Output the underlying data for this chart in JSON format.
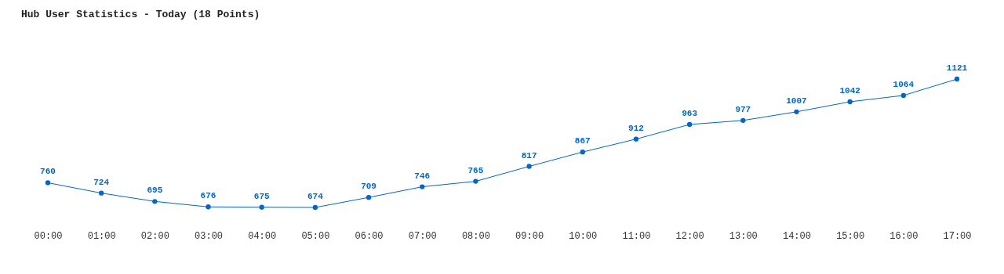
{
  "chart_data": {
    "type": "line",
    "title": "Hub User Statistics - Today (18 Points)",
    "categories": [
      "00:00",
      "01:00",
      "02:00",
      "03:00",
      "04:00",
      "05:00",
      "06:00",
      "07:00",
      "08:00",
      "09:00",
      "10:00",
      "11:00",
      "12:00",
      "13:00",
      "14:00",
      "15:00",
      "16:00",
      "17:00"
    ],
    "values": [
      760,
      724,
      695,
      676,
      675,
      674,
      709,
      746,
      765,
      817,
      867,
      912,
      963,
      977,
      1007,
      1042,
      1064,
      1121
    ],
    "color": "#0066cc",
    "data_labels": true,
    "marker": "circle",
    "grid": false
  }
}
